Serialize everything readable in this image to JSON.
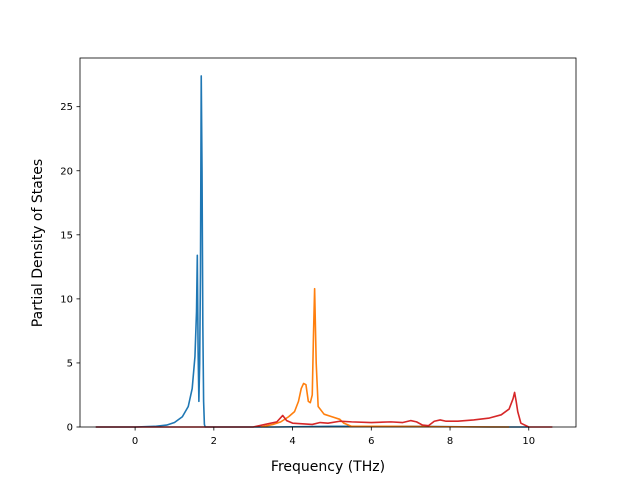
{
  "chart_data": {
    "type": "line",
    "title": "",
    "xlabel": "Frequency (THz)",
    "ylabel": "Partial Density of States",
    "xlim": [
      -1.4,
      11.2
    ],
    "ylim": [
      0,
      28.8
    ],
    "x_ticks": [
      0,
      2,
      4,
      6,
      8,
      10
    ],
    "y_ticks": [
      0,
      5,
      10,
      15,
      20,
      25
    ],
    "grid": false,
    "legend": "none",
    "series": [
      {
        "color": "#1f77b4",
        "x": [
          -1.0,
          0.0,
          0.5,
          0.8,
          1.0,
          1.2,
          1.35,
          1.45,
          1.52,
          1.56,
          1.58,
          1.6,
          1.62,
          1.64,
          1.66,
          1.68,
          1.7,
          1.72,
          1.74,
          1.76,
          1.78,
          2.2,
          3.5,
          5.0,
          7.0,
          9.0,
          10.0
        ],
        "y": [
          0.0,
          0.0,
          0.05,
          0.15,
          0.35,
          0.8,
          1.6,
          3.0,
          5.5,
          9.0,
          13.4,
          6.0,
          2.0,
          5.0,
          12.0,
          27.4,
          20.0,
          8.0,
          2.0,
          0.2,
          0.0,
          0.0,
          0.0,
          0.05,
          0.05,
          0.0,
          0.0
        ]
      },
      {
        "color": "#ff7f0e",
        "x": [
          3.2,
          3.5,
          3.7,
          3.9,
          4.05,
          4.15,
          4.22,
          4.28,
          4.34,
          4.4,
          4.45,
          4.5,
          4.53,
          4.56,
          4.6,
          4.65,
          4.8,
          5.0,
          5.2,
          5.3,
          5.5,
          6.5,
          8.0,
          9.5
        ],
        "y": [
          0.0,
          0.2,
          0.4,
          0.8,
          1.2,
          2.0,
          3.0,
          3.4,
          3.3,
          2.0,
          1.9,
          2.5,
          7.0,
          10.8,
          5.0,
          1.6,
          1.0,
          0.8,
          0.6,
          0.3,
          0.05,
          0.05,
          0.02,
          0.0
        ]
      },
      {
        "color": "#d62728",
        "x": [
          -1.0,
          3.0,
          3.3,
          3.6,
          3.75,
          3.85,
          4.0,
          4.5,
          4.7,
          4.9,
          5.2,
          5.5,
          6.0,
          6.5,
          6.8,
          7.0,
          7.15,
          7.3,
          7.45,
          7.6,
          7.75,
          7.9,
          8.2,
          8.6,
          9.0,
          9.3,
          9.5,
          9.6,
          9.64,
          9.68,
          9.72,
          9.8,
          10.0,
          10.6
        ],
        "y": [
          0.0,
          0.0,
          0.2,
          0.4,
          0.9,
          0.5,
          0.3,
          0.2,
          0.35,
          0.3,
          0.45,
          0.4,
          0.35,
          0.4,
          0.35,
          0.5,
          0.4,
          0.15,
          0.1,
          0.45,
          0.55,
          0.45,
          0.45,
          0.55,
          0.7,
          0.95,
          1.4,
          2.2,
          2.7,
          2.0,
          1.2,
          0.3,
          0.0,
          0.0
        ]
      }
    ]
  }
}
